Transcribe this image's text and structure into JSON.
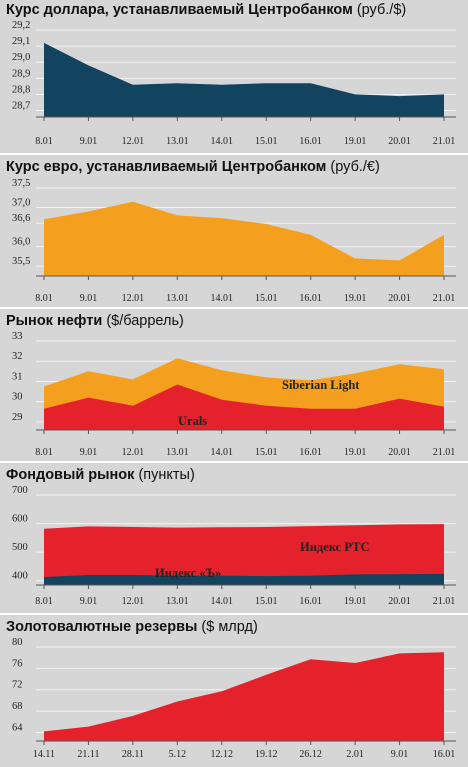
{
  "chart_data": [
    {
      "type": "area",
      "title": "Курс доллара, устанавливаемый Центробанком",
      "unit": "(руб./$)",
      "categories": [
        "8.01",
        "9.01",
        "12.01",
        "13.01",
        "14.01",
        "15.01",
        "16.01",
        "19.01",
        "20.01",
        "21.01"
      ],
      "yticks": [
        "29,2",
        "29,1",
        "29,0",
        "28,9",
        "28,8",
        "28,7"
      ],
      "ylim": [
        28.66,
        29.2
      ],
      "series": [
        {
          "values": [
            29.12,
            28.98,
            28.86,
            28.87,
            28.86,
            28.87,
            28.87,
            28.8,
            28.79,
            28.8
          ]
        }
      ],
      "colors": [
        "#12445f"
      ],
      "grid": true
    },
    {
      "type": "area",
      "title": "Курс евро, устанавливаемый Центробанком",
      "unit": "(руб./€)",
      "categories": [
        "8.01",
        "9.01",
        "12.01",
        "13.01",
        "14.01",
        "15.01",
        "16.01",
        "19.01",
        "20.01",
        "21.01"
      ],
      "yticks": [
        "37,5",
        "37,0",
        "36,6",
        "36,0",
        "35,5"
      ],
      "ylim": [
        35.25,
        37.5
      ],
      "series": [
        {
          "values": [
            36.7,
            36.9,
            37.15,
            36.8,
            36.73,
            36.58,
            36.3,
            35.7,
            35.65,
            36.3
          ]
        }
      ],
      "colors": [
        "#f4a01e"
      ],
      "grid": true
    },
    {
      "type": "area",
      "title": "Рынок нефти",
      "unit": "($/баррель)",
      "categories": [
        "8.01",
        "9.01",
        "12.01",
        "13.01",
        "14.01",
        "15.01",
        "16.01",
        "19.01",
        "20.01",
        "21.01"
      ],
      "yticks": [
        "33",
        "32",
        "31",
        "30",
        "29"
      ],
      "ylim": [
        28.6,
        33
      ],
      "series": [
        {
          "name": "Siberian Light",
          "values": [
            30.75,
            31.5,
            31.1,
            32.15,
            31.55,
            31.2,
            31.05,
            31.4,
            31.85,
            31.6
          ]
        },
        {
          "name": "Urals",
          "values": [
            29.65,
            30.2,
            29.8,
            30.85,
            30.1,
            29.8,
            29.65,
            29.65,
            30.15,
            29.75
          ]
        }
      ],
      "colors": [
        "#f4a01e",
        "#e5212c"
      ],
      "grid": true
    },
    {
      "type": "area",
      "title": "Фондовый рынок",
      "unit": "(пункты)",
      "categories": [
        "8.01",
        "9.01",
        "12.01",
        "13.01",
        "14.01",
        "15.01",
        "16.01",
        "19.01",
        "20.01",
        "21.01"
      ],
      "yticks": [
        "700",
        "600",
        "500",
        "400"
      ],
      "ylim": [
        385,
        700
      ],
      "series": [
        {
          "name": "Индекс РТС",
          "values": [
            582,
            590,
            588,
            586,
            587,
            588,
            591,
            594,
            597,
            598
          ]
        },
        {
          "name": "Индекс «Ъ»",
          "values": [
            413,
            420,
            420,
            418,
            418,
            416,
            418,
            422,
            423,
            424
          ]
        }
      ],
      "colors": [
        "#e5212c",
        "#12445f"
      ],
      "grid": true
    },
    {
      "type": "area",
      "title": "Золотовалютные резервы",
      "unit": "($ млрд)",
      "categories": [
        "14.11",
        "21.11",
        "28.11",
        "5.12",
        "12.12",
        "19.12",
        "26.12",
        "2.01",
        "9.01",
        "16.01"
      ],
      "yticks": [
        "80",
        "76",
        "72",
        "68",
        "64"
      ],
      "ylim": [
        62.4,
        80
      ],
      "series": [
        {
          "values": [
            64.2,
            65.1,
            67.1,
            69.8,
            71.7,
            74.8,
            77.7,
            77.0,
            78.8,
            79.0
          ]
        }
      ],
      "colors": [
        "#e5212c"
      ],
      "grid": true
    }
  ]
}
